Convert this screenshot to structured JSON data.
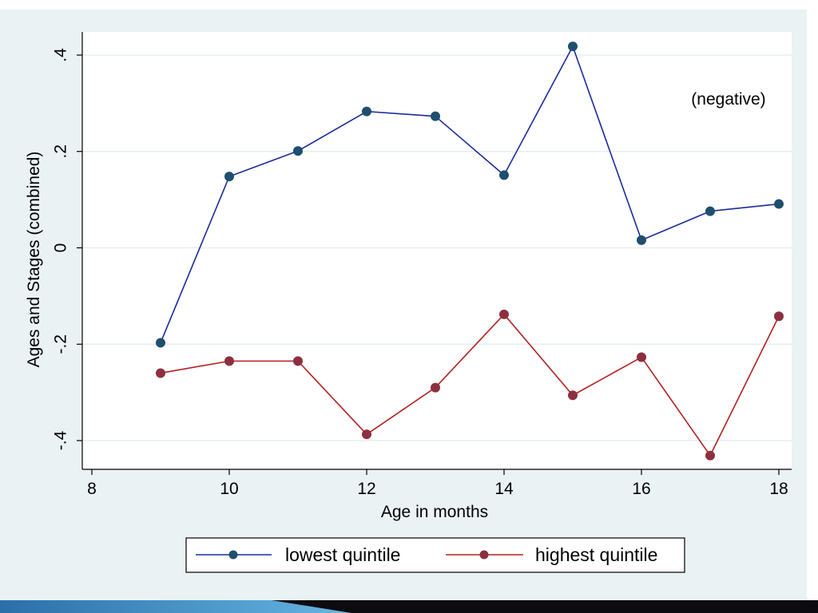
{
  "chart_data": {
    "type": "line",
    "title": "",
    "xlabel": "Age in months",
    "ylabel": "Ages and Stages (combined)",
    "xlim": [
      8,
      18
    ],
    "ylim": [
      -0.46,
      0.45
    ],
    "x_ticks": [
      8,
      10,
      12,
      14,
      16,
      18
    ],
    "x_tick_labels": [
      "8",
      "10",
      "12",
      "14",
      "16",
      "18"
    ],
    "y_ticks": [
      -0.4,
      -0.2,
      0,
      0.2,
      0.4
    ],
    "y_tick_labels": [
      "-.4",
      "-.2",
      "0",
      ".2",
      ".4"
    ],
    "grid": true,
    "legend_position": "bottom",
    "annotation": "(negative)",
    "x": [
      9,
      10,
      11,
      12,
      13,
      14,
      15,
      16,
      17,
      18
    ],
    "series": [
      {
        "name": "lowest quintile",
        "color": "#1a2b9c",
        "marker_color": "#1f4f6e",
        "values": [
          -0.197,
          0.148,
          0.201,
          0.283,
          0.273,
          0.151,
          0.418,
          0.016,
          0.076,
          0.091
        ]
      },
      {
        "name": "highest quintile",
        "color": "#b42020",
        "marker_color": "#8c3040",
        "values": [
          -0.26,
          -0.235,
          -0.235,
          -0.387,
          -0.29,
          -0.138,
          -0.306,
          -0.227,
          -0.431,
          -0.142
        ]
      }
    ]
  },
  "colors": {
    "frame_background": "#eaf2f3",
    "plot_background": "#ffffff",
    "grid": "#e6eeef"
  }
}
